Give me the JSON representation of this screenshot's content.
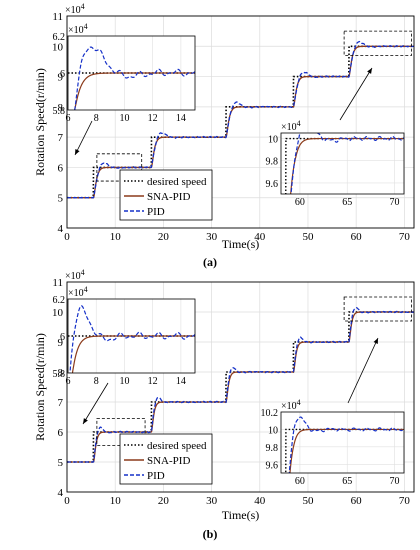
{
  "figure": {
    "panel_labels": [
      "(a)",
      "(b)"
    ]
  },
  "chart_data": [
    {
      "type": "line",
      "panel": "(a)",
      "xlabel": "Time(s)",
      "ylabel": "Rotation Speed(r/min)",
      "y_exponent": "×10^4",
      "xlim": [
        0,
        72
      ],
      "ylim": [
        4,
        11
      ],
      "xticks": [
        0,
        10,
        20,
        30,
        40,
        50,
        60,
        70
      ],
      "yticks": [
        4,
        5,
        6,
        7,
        8,
        9,
        10,
        11
      ],
      "grid": true,
      "legend": {
        "position": "lower-left",
        "entries": [
          "desired speed",
          "SNA-PID",
          "PID"
        ]
      },
      "colors": {
        "desired": "#000000",
        "sna": "#8B3A1A",
        "pid": "#1530C8"
      },
      "steps": [
        {
          "t": 0,
          "v": 5
        },
        {
          "t": 5.5,
          "v": 6
        },
        {
          "t": 17.5,
          "v": 7
        },
        {
          "t": 33,
          "v": 8
        },
        {
          "t": 47,
          "v": 9
        },
        {
          "t": 58.5,
          "v": 10
        }
      ],
      "response": {
        "sna_lag": 0.6,
        "sna_overshoot": 0.05,
        "pid_lag": 1.5,
        "pid_overshoot": 0.16
      },
      "insets": [
        {
          "name": "inset-left",
          "xlim": [
            6,
            15
          ],
          "ylim": [
            5.8,
            6.2
          ],
          "xticks": [
            6,
            8,
            10,
            12,
            14
          ],
          "yticks": [
            5.8,
            6,
            6.2
          ],
          "ytick_labels": [
            "5.8",
            "6",
            "6.2"
          ],
          "exponent": "×10^4"
        },
        {
          "name": "inset-right",
          "xlim": [
            58,
            71
          ],
          "ylim": [
            9.5,
            10.05
          ],
          "xticks": [
            60,
            65,
            70
          ],
          "yticks": [
            9.6,
            9.8,
            10
          ],
          "ytick_labels": [
            "9.6",
            "9.8",
            "10"
          ],
          "exponent": "×10^4"
        }
      ]
    },
    {
      "type": "line",
      "panel": "(b)",
      "xlabel": "Time(s)",
      "ylabel": "Rotation Speed(r/min)",
      "y_exponent": "×10^4",
      "xlim": [
        0,
        72
      ],
      "ylim": [
        4,
        11
      ],
      "xticks": [
        0,
        10,
        20,
        30,
        40,
        50,
        60,
        70
      ],
      "yticks": [
        4,
        5,
        6,
        7,
        8,
        9,
        10,
        11
      ],
      "grid": true,
      "legend": {
        "position": "lower-left",
        "entries": [
          "desired speed",
          "SNA-PID",
          "PID"
        ]
      },
      "colors": {
        "desired": "#000000",
        "sna": "#8B3A1A",
        "pid": "#1530C8"
      },
      "steps": [
        {
          "t": 0,
          "v": 5
        },
        {
          "t": 5.5,
          "v": 6
        },
        {
          "t": 17.5,
          "v": 7
        },
        {
          "t": 33,
          "v": 8
        },
        {
          "t": 47,
          "v": 9
        },
        {
          "t": 58.5,
          "v": 10
        }
      ],
      "response": {
        "sna_lag": 0.5,
        "sna_overshoot": 0.03,
        "pid_lag": 1.0,
        "pid_overshoot": 0.18
      },
      "insets": [
        {
          "name": "inset-left",
          "xlim": [
            6,
            15
          ],
          "ylim": [
            5.8,
            6.2
          ],
          "xticks": [
            6,
            8,
            10,
            12,
            14
          ],
          "yticks": [
            5.8,
            6,
            6.2
          ],
          "ytick_labels": [
            "5.8",
            "6",
            "6.2"
          ],
          "exponent": "×10^4"
        },
        {
          "name": "inset-right",
          "xlim": [
            58,
            71
          ],
          "ylim": [
            9.5,
            10.2
          ],
          "xticks": [
            60,
            65,
            70
          ],
          "yticks": [
            9.6,
            9.8,
            10,
            10.2
          ],
          "ytick_labels": [
            "9.6",
            "9.8",
            "10",
            "10.2"
          ],
          "exponent": "×10^4"
        }
      ]
    }
  ]
}
